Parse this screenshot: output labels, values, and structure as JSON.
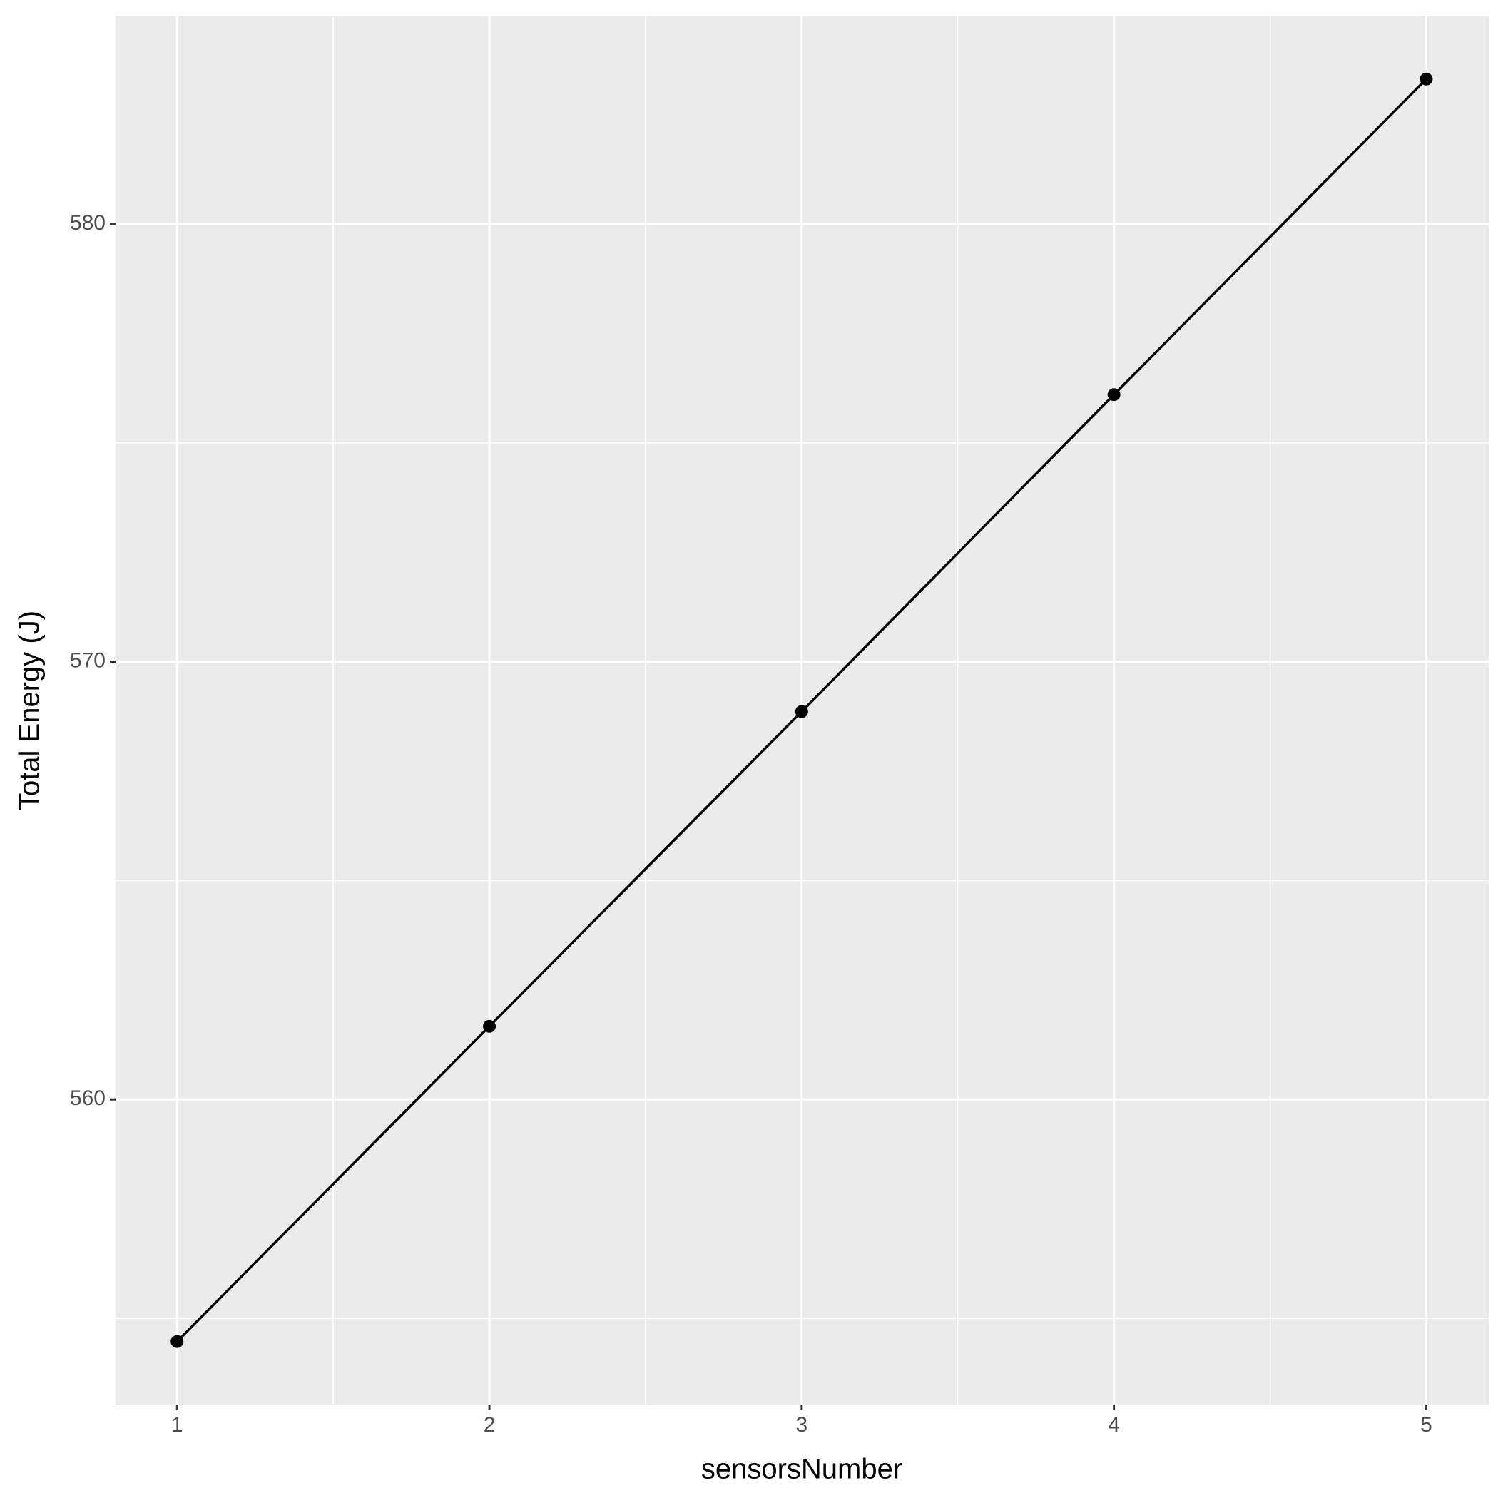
{
  "chart_data": {
    "type": "line",
    "xlabel": "sensorsNumber",
    "ylabel": "Total Energy (J)",
    "x": [
      1,
      2,
      3,
      4,
      5
    ],
    "values": [
      554.47,
      561.67,
      568.86,
      576.1,
      583.31
    ],
    "color": "#000000",
    "xlim": [
      0.803,
      5.2
    ],
    "ylim": [
      553.03,
      584.74
    ],
    "xticks": [
      1,
      2,
      3,
      4,
      5
    ],
    "yticks": [
      560,
      570,
      580
    ],
    "grid": true
  }
}
